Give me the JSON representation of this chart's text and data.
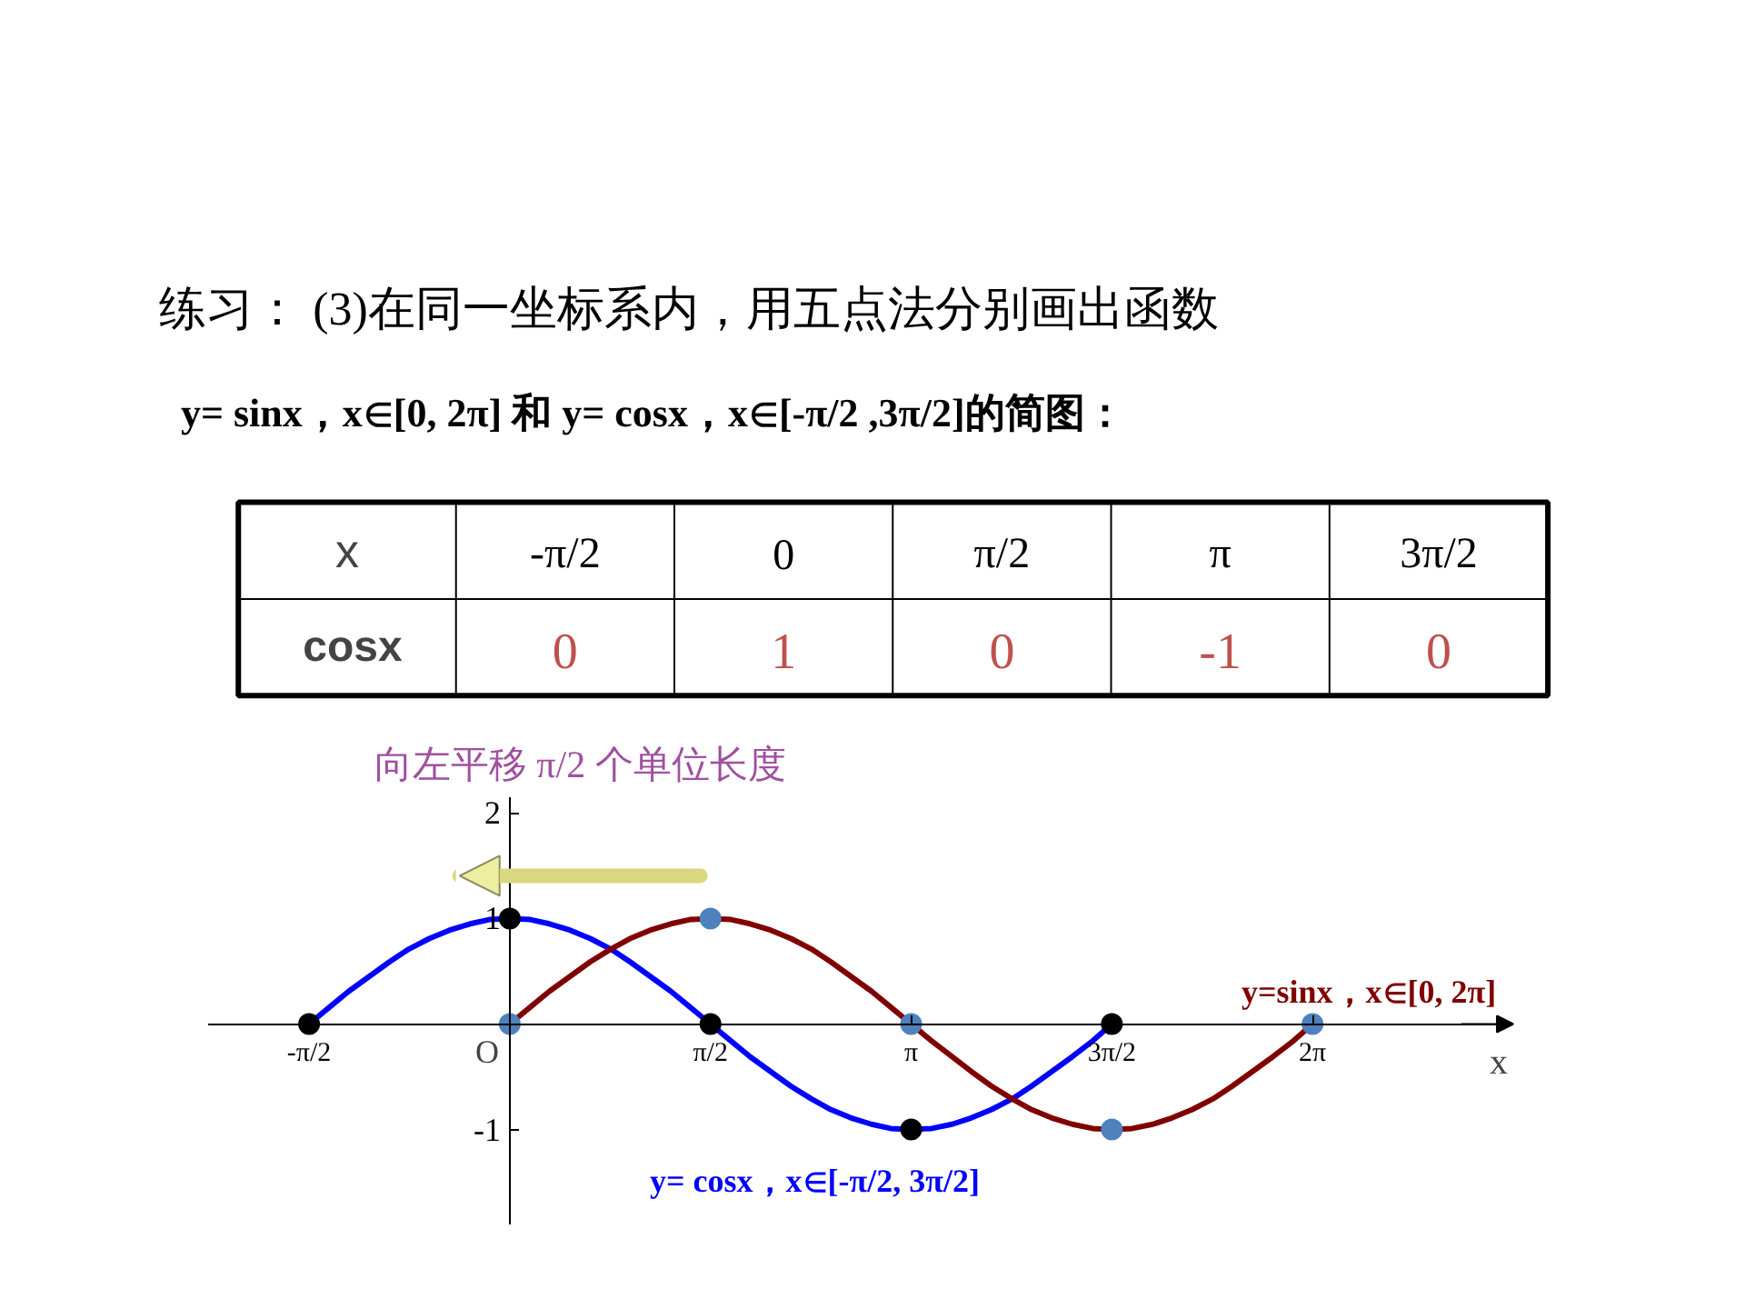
{
  "chart_data": {
    "type": "line",
    "title": "练习：  (3)在同一坐标系内，用五点法分别画出函数",
    "subtitle": "y= sinx，x∈[0, 2π]  和 y= cosx，x∈[-π/2 ,3π/2]的简图：",
    "xlabel": "x",
    "annotations": [
      "向左平移 π/2 个单位长度",
      "x",
      "-π/2",
      "0",
      "π/2",
      "π",
      "3π/2",
      "cosx",
      "0",
      "1",
      "0",
      "-1",
      "0",
      "O"
    ],
    "xlim": [
      -2.36,
      7.85
    ],
    "ylim": [
      -1.9,
      2.15
    ],
    "xticks": [
      {
        "value": -1.57,
        "label": "-π/2"
      },
      {
        "value": 1.57,
        "label": "π/2"
      },
      {
        "value": 3.14,
        "label": "π"
      },
      {
        "value": 4.71,
        "label": "3π/2"
      },
      {
        "value": 6.28,
        "label": "2π"
      }
    ],
    "yticks": [
      -1,
      1,
      2
    ],
    "series": [
      {
        "name": "y= cosx，x∈[-π/2, 3π/2]",
        "color": "#0000ff",
        "x": [
          -1.57,
          -1.41,
          -1.26,
          -1.1,
          -0.94,
          -0.79,
          -0.63,
          -0.47,
          -0.31,
          -0.16,
          0,
          0.16,
          0.31,
          0.47,
          0.63,
          0.79,
          0.94,
          1.1,
          1.26,
          1.41,
          1.57,
          1.73,
          1.88,
          2.04,
          2.2,
          2.36,
          2.51,
          2.67,
          2.83,
          2.98,
          3.14,
          3.3,
          3.46,
          3.61,
          3.77,
          3.93,
          4.08,
          4.24,
          4.4,
          4.56,
          4.71
        ],
        "values": [
          0,
          0.16,
          0.31,
          0.45,
          0.59,
          0.71,
          0.81,
          0.89,
          0.95,
          0.99,
          1,
          0.99,
          0.95,
          0.89,
          0.81,
          0.71,
          0.59,
          0.45,
          0.31,
          0.16,
          0,
          -0.16,
          -0.31,
          -0.45,
          -0.59,
          -0.71,
          -0.81,
          -0.89,
          -0.95,
          -0.99,
          -1,
          -0.99,
          -0.95,
          -0.89,
          -0.81,
          -0.71,
          -0.59,
          -0.45,
          -0.31,
          -0.16,
          0
        ]
      },
      {
        "name": "y=sinx，x∈[0, 2π]",
        "color": "#800000",
        "x": [
          0,
          0.16,
          0.31,
          0.47,
          0.63,
          0.79,
          0.94,
          1.1,
          1.26,
          1.41,
          1.57,
          1.73,
          1.88,
          2.04,
          2.2,
          2.36,
          2.51,
          2.67,
          2.83,
          2.98,
          3.14,
          3.3,
          3.46,
          3.61,
          3.77,
          3.93,
          4.08,
          4.24,
          4.4,
          4.56,
          4.71,
          4.87,
          5.03,
          5.18,
          5.34,
          5.5,
          5.65,
          5.81,
          5.97,
          6.13,
          6.28
        ],
        "values": [
          0,
          0.16,
          0.31,
          0.45,
          0.59,
          0.71,
          0.81,
          0.89,
          0.95,
          0.99,
          1,
          0.99,
          0.95,
          0.89,
          0.81,
          0.71,
          0.59,
          0.45,
          0.31,
          0.16,
          0,
          -0.16,
          -0.31,
          -0.45,
          -0.59,
          -0.71,
          -0.81,
          -0.89,
          -0.95,
          -0.99,
          -1,
          -0.99,
          -0.95,
          -0.89,
          -0.81,
          -0.71,
          -0.59,
          -0.45,
          -0.31,
          -0.16,
          0
        ]
      },
      {
        "type": "scatter",
        "marker": "circle",
        "color": "#000000",
        "x": [
          -1.57,
          0,
          1.57,
          3.14,
          4.71
        ],
        "values": [
          0,
          1,
          0,
          -1,
          0
        ]
      },
      {
        "type": "scatter",
        "marker": "circle",
        "color": "#4f81bd",
        "x": [
          0,
          1.57,
          3.14,
          4.71,
          6.28
        ],
        "values": [
          0,
          1,
          0,
          -1,
          0
        ]
      }
    ]
  }
}
